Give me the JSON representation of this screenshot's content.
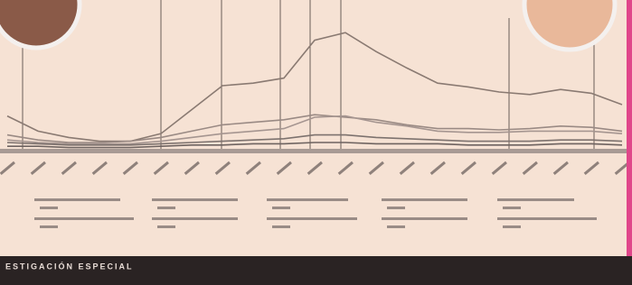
{
  "chart_data": {
    "type": "line",
    "categories": [
      null,
      null,
      null,
      null,
      null,
      null,
      null,
      null,
      null,
      null,
      null,
      null,
      null,
      null,
      null,
      null,
      null,
      null,
      null,
      null,
      null
    ],
    "ylim": [
      0,
      100
    ],
    "series": [
      {
        "color": "#8a7a72",
        "values": [
          26,
          14,
          9,
          6,
          6,
          12,
          31,
          50,
          52,
          56,
          86,
          92,
          77,
          64,
          52,
          49,
          45,
          43,
          47,
          44,
          35
        ]
      },
      {
        "color": "#9a8a84",
        "values": [
          11,
          7,
          5,
          5,
          6,
          9,
          14,
          19,
          21,
          23,
          27,
          25,
          23,
          19,
          16,
          16,
          15,
          16,
          18,
          17,
          14
        ]
      },
      {
        "color": "#a59590",
        "values": [
          7,
          5,
          4,
          4,
          4,
          6,
          9,
          12,
          14,
          16,
          25,
          26,
          21,
          18,
          14,
          13,
          13,
          14,
          14,
          14,
          12
        ]
      },
      {
        "color": "#7d726e",
        "values": [
          5,
          4,
          3,
          3,
          3,
          4,
          5,
          6,
          7,
          8,
          11,
          11,
          9,
          8,
          7,
          6,
          6,
          6,
          7,
          7,
          6
        ]
      },
      {
        "color": "#6e6360",
        "values": [
          2,
          2,
          1,
          1,
          1,
          2,
          3,
          3,
          4,
          4,
          5,
          5,
          4,
          4,
          4,
          3,
          3,
          3,
          4,
          4,
          3
        ]
      }
    ]
  },
  "footer": {
    "section": "ESTIGACIÓN ESPECIAL"
  }
}
